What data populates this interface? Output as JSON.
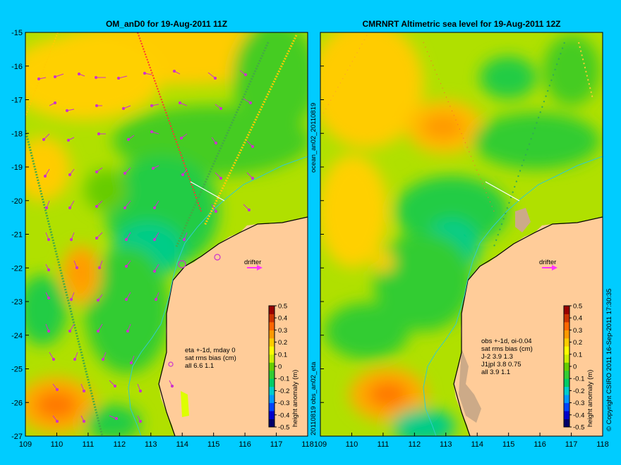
{
  "colors": {
    "background": "#00ccff",
    "land": "#ffcc99",
    "vector": "#cc33cc",
    "coast_current": "#33cccc",
    "colorbar": [
      "#00006a",
      "#0000cc",
      "#0044ff",
      "#0099ff",
      "#00cccc",
      "#00cc66",
      "#33cc33",
      "#66cc00",
      "#ccee00",
      "#ffff00",
      "#ffcc00",
      "#ff9900",
      "#ff6600",
      "#cc3300",
      "#990000"
    ]
  },
  "left_panel": {
    "title": "OM_anD0 for 19-Aug-2011 11Z",
    "annotation": [
      "eta +-1d, mday 0",
      "sat rms bias (cm)",
      "all 6.6 1.1"
    ],
    "drifter_label": "drifter"
  },
  "right_panel": {
    "title": "CMRNRT Altimetric sea level  for 19-Aug-2011 12Z",
    "annotation": [
      "obs +-1d, oi-0.04",
      "sat rms bias (cm)",
      "J-2   3.9 1.3",
      "J1jpl 3.8 0.75",
      "all 3.9 1.1"
    ],
    "drifter_label": "drifter"
  },
  "side_labels": {
    "top": "ocean_an02_20110819",
    "bottom": "20110819 obs_an02_eta"
  },
  "copyright": "© Copyright CSIRO 2011   16-Sep-2011 17:30:35",
  "axes": {
    "x_ticks": [
      "109",
      "110",
      "111",
      "112",
      "113",
      "114",
      "115",
      "116",
      "117",
      "118"
    ],
    "y_ticks": [
      "-15",
      "-16",
      "-17",
      "-18",
      "-19",
      "-20",
      "-21",
      "-22",
      "-23",
      "-24",
      "-25",
      "-26",
      "-27"
    ],
    "lon_range": [
      109,
      118
    ],
    "lat_range": [
      -27,
      -15
    ]
  },
  "colorbar": {
    "label": "height anomaly (m)",
    "ticks": [
      "0.5",
      "0.4",
      "0.3",
      "0.2",
      "0.1",
      "0",
      "-0.1",
      "-0.2",
      "-0.3",
      "-0.4",
      "-0.5"
    ],
    "range": [
      -0.5,
      0.5
    ]
  }
}
